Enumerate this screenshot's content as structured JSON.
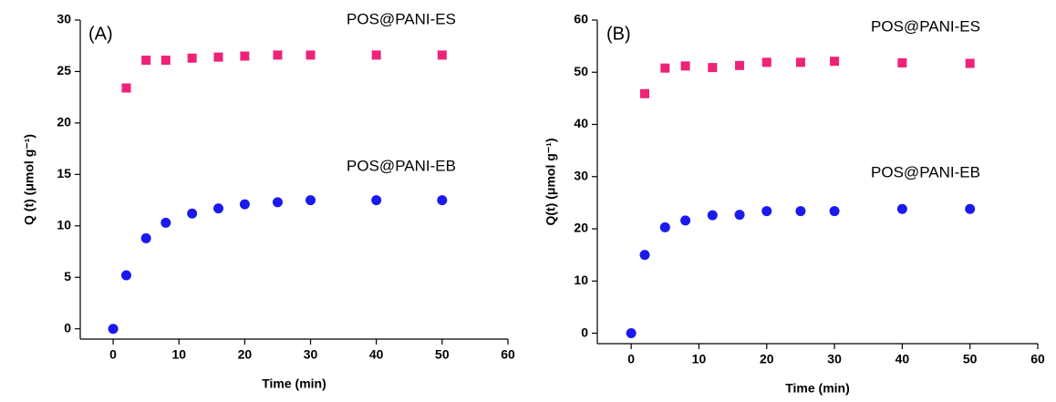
{
  "chart_data": [
    {
      "type": "scatter",
      "annotation": "(A)",
      "x_label": "Time (min)",
      "y_label": "Q (t) (μmol g⁻¹)",
      "xlim": [
        -5,
        60
      ],
      "xticks": [
        0,
        10,
        20,
        30,
        40,
        50,
        60
      ],
      "ylim": [
        -1,
        30
      ],
      "yticks": [
        0,
        5,
        10,
        15,
        20,
        25,
        30
      ],
      "series": [
        {
          "name": "POS@PANI-ES",
          "color": "#ee2277",
          "marker": "square",
          "x": [
            2,
            5,
            8,
            12,
            16,
            20,
            25,
            30,
            40,
            50
          ],
          "values": [
            23.4,
            26.1,
            26.1,
            26.3,
            26.4,
            26.5,
            26.6,
            26.6,
            26.6,
            26.6
          ]
        },
        {
          "name": "POS@PANI-EB",
          "color": "#1a1aee",
          "marker": "circle",
          "x": [
            0,
            2,
            5,
            8,
            12,
            16,
            20,
            25,
            30,
            40,
            50
          ],
          "values": [
            0,
            5.2,
            8.8,
            10.3,
            11.2,
            11.7,
            12.1,
            12.3,
            12.5,
            12.5,
            12.5
          ]
        }
      ]
    },
    {
      "type": "scatter",
      "annotation": "(B)",
      "x_label": "Time (min)",
      "y_label": "Q(t) (μmol g⁻¹)",
      "xlim": [
        -5,
        60
      ],
      "xticks": [
        0,
        10,
        20,
        30,
        40,
        50,
        60
      ],
      "ylim": [
        -2,
        60
      ],
      "yticks": [
        0,
        10,
        20,
        30,
        40,
        50,
        60
      ],
      "series": [
        {
          "name": "POS@PANI-ES",
          "color": "#ee2277",
          "marker": "square",
          "x": [
            2,
            5,
            8,
            12,
            16,
            20,
            25,
            30,
            40,
            50
          ],
          "values": [
            45.9,
            50.8,
            51.2,
            50.9,
            51.3,
            51.9,
            51.9,
            52.1,
            51.8,
            51.7
          ]
        },
        {
          "name": "POS@PANI-EB",
          "color": "#1a1aee",
          "marker": "circle",
          "x": [
            0,
            2,
            5,
            8,
            12,
            16,
            20,
            25,
            30,
            40,
            50
          ],
          "values": [
            0,
            15,
            20.3,
            21.6,
            22.6,
            22.7,
            23.4,
            23.4,
            23.4,
            23.8,
            23.8
          ]
        }
      ]
    }
  ]
}
